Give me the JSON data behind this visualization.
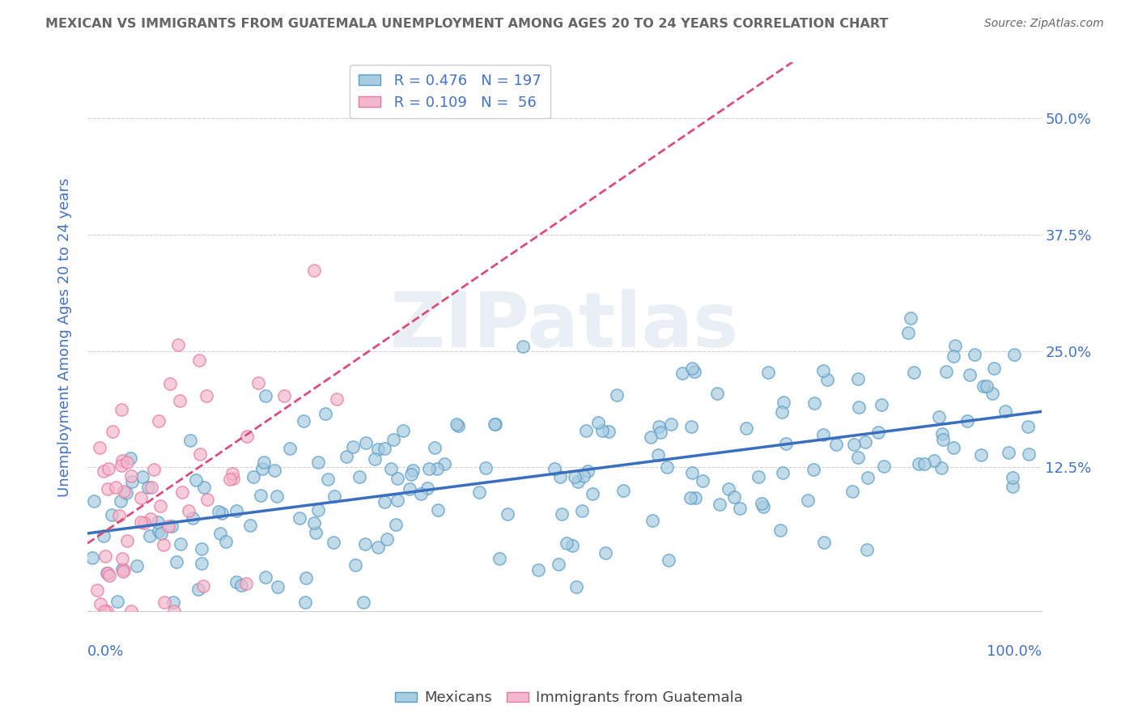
{
  "title": "MEXICAN VS IMMIGRANTS FROM GUATEMALA UNEMPLOYMENT AMONG AGES 20 TO 24 YEARS CORRELATION CHART",
  "source": "Source: ZipAtlas.com",
  "ylabel": "Unemployment Among Ages 20 to 24 years",
  "xlim": [
    0,
    1.0
  ],
  "ylim": [
    -0.03,
    0.56
  ],
  "yticks": [
    0.125,
    0.25,
    0.375,
    0.5
  ],
  "ytick_labels": [
    "12.5%",
    "25.0%",
    "37.5%",
    "50.0%"
  ],
  "xticks": [
    0,
    0.25,
    0.5,
    0.75,
    1.0
  ],
  "xtick_labels": [
    "0.0%",
    "",
    "",
    "",
    "100.0%"
  ],
  "mexicans_R": 0.476,
  "mexicans_N": 197,
  "guatemalans_R": 0.109,
  "guatemalans_N": 56,
  "blue_color": "#a8cce0",
  "blue_edge_color": "#5b9dc9",
  "pink_color": "#f4b8cc",
  "pink_edge_color": "#e87aa0",
  "blue_line_color": "#3a6fbf",
  "pink_line_color": "#d94f7a",
  "watermark_text": "ZIPatlas",
  "legend_labels": [
    "Mexicans",
    "Immigrants from Guatemala"
  ],
  "title_color": "#666666",
  "axis_label_color": "#4472c4",
  "tick_color": "#4472c4",
  "grid_color": "#cccccc",
  "background_color": "#ffffff"
}
